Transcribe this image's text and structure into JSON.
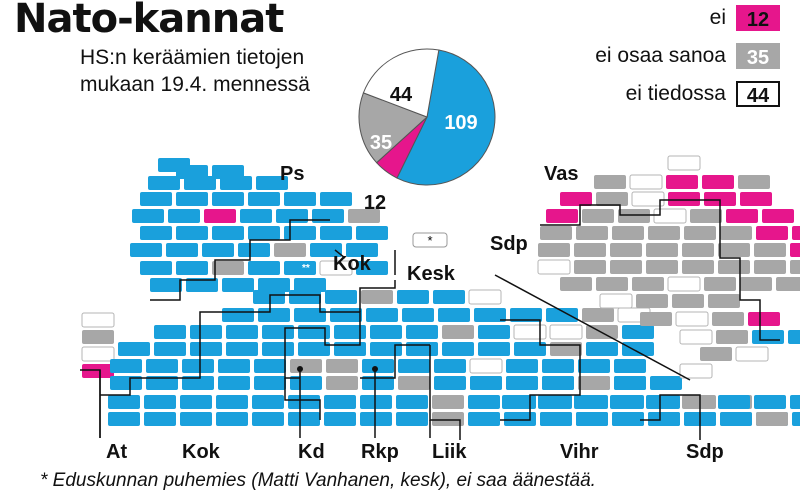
{
  "title": "Nato-kannat",
  "subtitle_line1": "HS:n keräämien tietojen",
  "subtitle_line2": "mukaan 19.4. mennessä",
  "footnote": "* Eduskunnan puhemies (Matti Vanhanen, kesk), ei saa äänestää.",
  "colors": {
    "kylla": "#1aa0dc",
    "ei": "#e6168c",
    "ei_osaa_sanoa": "#a7a7a7",
    "ei_tiedossa": "#ffffff"
  },
  "legend": [
    {
      "label": "ei",
      "value": "12",
      "key": "ei"
    },
    {
      "label": "ei osaa sanoa",
      "value": "35",
      "key": "ei_osaa_sanoa"
    },
    {
      "label": "ei tiedossa",
      "value": "44",
      "key": "ei_tiedossa"
    }
  ],
  "chart_data": {
    "type": "pie",
    "slices": [
      {
        "label": "109",
        "value": 109,
        "key": "kylla"
      },
      {
        "label": "12",
        "value": 12,
        "key": "ei"
      },
      {
        "label": "35",
        "value": 35,
        "key": "ei_osaa_sanoa"
      },
      {
        "label": "44",
        "value": 44,
        "key": "ei_tiedossa"
      }
    ],
    "speaker_mark": "*",
    "party_labels": [
      {
        "id": "ps",
        "text": "Ps"
      },
      {
        "id": "kok-top",
        "text": "Kok"
      },
      {
        "id": "kesk",
        "text": "Kesk"
      },
      {
        "id": "vas",
        "text": "Vas"
      },
      {
        "id": "sdp-top",
        "text": "Sdp"
      },
      {
        "id": "at",
        "text": "At"
      },
      {
        "id": "kok",
        "text": "Kok"
      },
      {
        "id": "kd",
        "text": "Kd"
      },
      {
        "id": "rkp",
        "text": "Rkp"
      },
      {
        "id": "liik",
        "text": "Liik"
      },
      {
        "id": "vihr",
        "text": "Vihr"
      },
      {
        "id": "sdp",
        "text": "Sdp"
      }
    ],
    "seat_marker": "**"
  }
}
